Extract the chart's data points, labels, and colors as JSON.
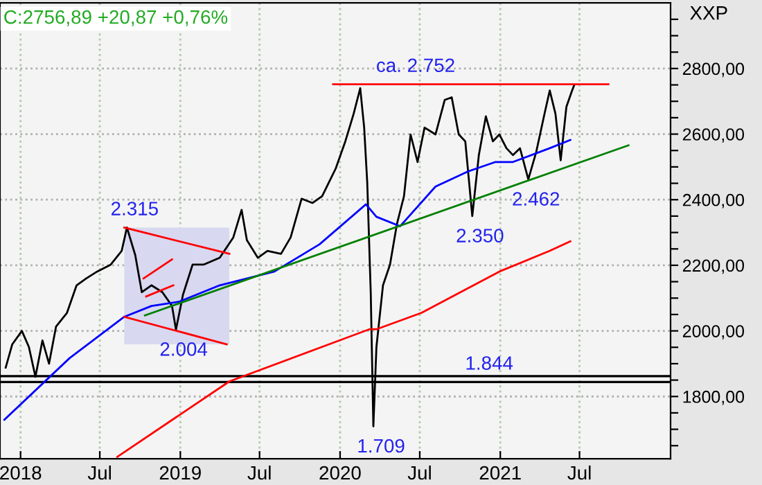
{
  "chart_data": {
    "type": "line",
    "title": "C:2756,89 +20,87 +0,76%",
    "xlim": [
      "2017-11-15",
      "2022-01-25"
    ],
    "ylim": [
      1610,
      3000
    ],
    "xticks": [
      {
        "value": "2018-01-01",
        "label": "2018"
      },
      {
        "value": "2018-07-01",
        "label": "Jul"
      },
      {
        "value": "2019-01-01",
        "label": "2019"
      },
      {
        "value": "2019-07-01",
        "label": "Jul"
      },
      {
        "value": "2020-01-01",
        "label": "2020"
      },
      {
        "value": "2020-07-01",
        "label": "Jul"
      },
      {
        "value": "2021-01-01",
        "label": "2021"
      },
      {
        "value": "2021-07-01",
        "label": "Jul"
      }
    ],
    "yticks": [
      {
        "value": 1650,
        "label": null
      },
      {
        "value": 1700,
        "label": null
      },
      {
        "value": 1750,
        "label": null
      },
      {
        "value": 1800,
        "label": "1800,00"
      },
      {
        "value": 1850,
        "label": null
      },
      {
        "value": 1900,
        "label": null
      },
      {
        "value": 1950,
        "label": null
      },
      {
        "value": 2000,
        "label": "2000,00"
      },
      {
        "value": 2050,
        "label": null
      },
      {
        "value": 2100,
        "label": null
      },
      {
        "value": 2150,
        "label": null
      },
      {
        "value": 2200,
        "label": "2200,00"
      },
      {
        "value": 2250,
        "label": null
      },
      {
        "value": 2300,
        "label": null
      },
      {
        "value": 2350,
        "label": null
      },
      {
        "value": 2400,
        "label": "2400,00"
      },
      {
        "value": 2450,
        "label": null
      },
      {
        "value": 2500,
        "label": null
      },
      {
        "value": 2550,
        "label": null
      },
      {
        "value": 2600,
        "label": "2600,00"
      },
      {
        "value": 2650,
        "label": null
      },
      {
        "value": 2700,
        "label": null
      },
      {
        "value": 2750,
        "label": null
      },
      {
        "value": 2800,
        "label": "2800,00"
      },
      {
        "value": 2850,
        "label": null
      },
      {
        "value": 2900,
        "label": null
      },
      {
        "value": 2950,
        "label": null
      }
    ],
    "grid": true,
    "legend": false,
    "series": [
      {
        "color": "#000000",
        "x": [
          "2017-11-28",
          "2017-12-13",
          "2018-01-04",
          "2018-01-20",
          "2018-02-04",
          "2018-02-20",
          "2018-03-07",
          "2018-03-23",
          "2018-04-17",
          "2018-05-09",
          "2018-05-31",
          "2018-06-25",
          "2018-07-26",
          "2018-08-20",
          "2018-09-01",
          "2018-09-20",
          "2018-10-05",
          "2018-10-27",
          "2018-11-21",
          "2018-12-13",
          "2018-12-22",
          "2019-01-07",
          "2019-01-29",
          "2019-02-23",
          "2019-04-01",
          "2019-05-02",
          "2019-05-21",
          "2019-06-02",
          "2019-06-27",
          "2019-07-19",
          "2019-08-19",
          "2019-09-10",
          "2019-10-05",
          "2019-10-30",
          "2019-11-21",
          "2019-12-22",
          "2020-01-13",
          "2020-02-01",
          "2020-02-16",
          "2020-02-25",
          "2020-03-03",
          "2020-03-11",
          "2020-03-17",
          "2020-03-24",
          "2020-04-08",
          "2020-04-24",
          "2020-05-10",
          "2020-05-26",
          "2020-06-10",
          "2020-06-26",
          "2020-07-12",
          "2020-08-06",
          "2020-08-27",
          "2020-09-12",
          "2020-09-28",
          "2020-10-13",
          "2020-10-29",
          "2020-11-13",
          "2020-11-29",
          "2020-12-15",
          "2020-12-30",
          "2021-01-15",
          "2021-01-30",
          "2021-02-15",
          "2021-03-06",
          "2021-03-24",
          "2021-04-12",
          "2021-04-24",
          "2021-05-07",
          "2021-05-19",
          "2021-06-01",
          "2021-06-13",
          "2021-06-19"
        ],
        "values": [
          1888,
          1959,
          2000,
          1951,
          1860,
          1971,
          1900,
          2013,
          2055,
          2139,
          2160,
          2181,
          2202,
          2244,
          2315,
          2231,
          2118,
          2139,
          2118,
          2076,
          2004,
          2110,
          2202,
          2202,
          2223,
          2285,
          2369,
          2277,
          2223,
          2244,
          2235,
          2285,
          2403,
          2390,
          2411,
          2495,
          2578,
          2662,
          2740,
          2620,
          2453,
          2118,
          1709,
          1951,
          2139,
          2202,
          2327,
          2411,
          2599,
          2515,
          2620,
          2599,
          2704,
          2712,
          2599,
          2578,
          2350,
          2536,
          2654,
          2578,
          2599,
          2557,
          2536,
          2557,
          2462,
          2545,
          2662,
          2733,
          2662,
          2520,
          2683,
          2729,
          2750
        ]
      },
      {
        "type": "line",
        "color": "#0000ff",
        "x": [
          "2017-11-25",
          "2018-04-23",
          "2018-08-26",
          "2018-10-27",
          "2018-12-29",
          "2019-04-01",
          "2019-08-04",
          "2019-11-15",
          "2020-02-29",
          "2020-03-24",
          "2020-05-17",
          "2020-08-06",
          "2020-10-19",
          "2020-12-21",
          "2021-01-30",
          "2021-04-24",
          "2021-06-10"
        ],
        "values": [
          1729,
          1917,
          2043,
          2076,
          2089,
          2139,
          2181,
          2264,
          2386,
          2348,
          2319,
          2440,
          2486,
          2515,
          2515,
          2557,
          2582
        ]
      },
      {
        "type": "line",
        "color": "#ff0000",
        "x": [
          "2018-08-10",
          "2019-04-23",
          "2020-03-08",
          "2020-03-24",
          "2020-07-05",
          "2020-12-30",
          "2021-04-24",
          "2021-06-10"
        ],
        "values": [
          1616,
          1846,
          2005,
          2005,
          2055,
          2181,
          2244,
          2273
        ]
      },
      {
        "type": "line",
        "color": "#008000",
        "x": [
          "2018-10-12",
          "2021-10-21"
        ],
        "values": [
          2047,
          2566
        ]
      },
      {
        "type": "line",
        "color": "#ff0000",
        "x": [
          "2018-08-26",
          "2019-04-23"
        ],
        "values": [
          2315,
          2235
        ]
      },
      {
        "type": "line",
        "color": "#ff0000",
        "x": [
          "2018-08-26",
          "2019-04-17"
        ],
        "values": [
          2043,
          1959
        ]
      },
      {
        "type": "line",
        "color": "#ff0000",
        "x": [
          "2018-10-09",
          "2018-12-13"
        ],
        "values": [
          2160,
          2218
        ]
      },
      {
        "type": "line",
        "color": "#ff0000",
        "x": [
          "2018-10-15",
          "2018-12-16"
        ],
        "values": [
          2105,
          2139
        ]
      },
      {
        "type": "line",
        "color": "#ff0000",
        "x": [
          "2019-12-16",
          "2021-09-05"
        ],
        "values": [
          2752,
          2752
        ]
      }
    ],
    "ref_lines": [
      {
        "axis": "y",
        "value": 1844,
        "color": "#000000"
      },
      {
        "axis": "y",
        "value": 1862,
        "color": "#000000"
      }
    ],
    "annotations": [
      {
        "text": "2.315",
        "x": "2018-09-01",
        "y": 2315
      },
      {
        "text": "2.004",
        "x": "2018-12-22",
        "y": 2004
      },
      {
        "text": "1.709",
        "x": "2020-03-17",
        "y": 1709
      },
      {
        "text": "ca. 2.752",
        "x": "2020-06-04",
        "y": 2752
      },
      {
        "text": "2.350",
        "x": "2020-10-29",
        "y": 2350
      },
      {
        "text": "2.462",
        "x": "2021-03-06",
        "y": 2462
      },
      {
        "text": "1.844",
        "x": "2020-11-19",
        "y": 1844
      },
      "XXP"
    ]
  }
}
